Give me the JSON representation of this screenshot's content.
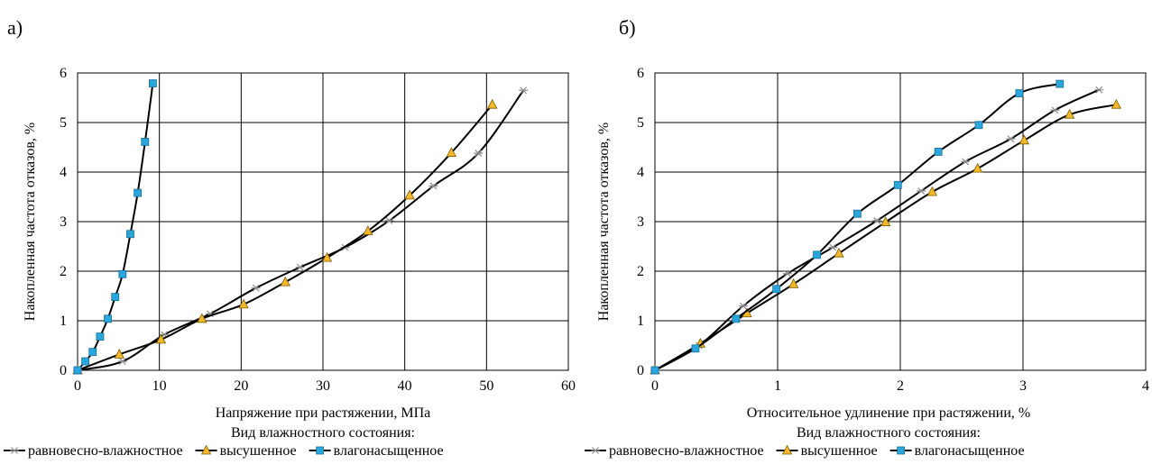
{
  "panels": [
    {
      "label": "а)"
    },
    {
      "label": "б)"
    }
  ],
  "legend_title": "Вид влажностного состояния:",
  "colors": {
    "marker_fill": "#29a6dc",
    "triangle_fill": "#f5b82a",
    "star_stroke": "#8c8c8c",
    "line": "#000000"
  },
  "chart_data": [
    {
      "type": "line",
      "xlabel": "Напряжение при растяжении, МПа",
      "ylabel": "Накопленная частота отказов, %",
      "xlim": [
        0,
        60
      ],
      "ylim": [
        0,
        6
      ],
      "xticks": [
        "0",
        "10",
        "20",
        "30",
        "40",
        "50",
        "60"
      ],
      "yticks": [
        "0",
        "1",
        "2",
        "3",
        "4",
        "5",
        "6"
      ],
      "grid": true,
      "legend": "bottom",
      "series": [
        {
          "name": "равновесно-влажностное",
          "marker": "star",
          "x": [
            0,
            5.5,
            10.6,
            16.2,
            21.8,
            27.2,
            32.7,
            38.1,
            43.5,
            49,
            54.5
          ],
          "y": [
            0,
            0.18,
            0.72,
            1.14,
            1.66,
            2.08,
            2.48,
            3.02,
            3.72,
            4.38,
            5.65
          ]
        },
        {
          "name": "высушенное",
          "marker": "triangle",
          "x": [
            0,
            5.1,
            10.2,
            15.2,
            20.3,
            25.4,
            30.5,
            35.5,
            40.6,
            45.7,
            50.7
          ],
          "y": [
            0,
            0.32,
            0.62,
            1.04,
            1.33,
            1.78,
            2.27,
            2.81,
            3.53,
            4.39,
            5.36
          ]
        },
        {
          "name": "влагонасыщенное",
          "marker": "square",
          "x": [
            0,
            0.95,
            1.85,
            2.75,
            3.7,
            4.6,
            5.5,
            6.45,
            7.35,
            8.25,
            9.2
          ],
          "y": [
            0,
            0.18,
            0.37,
            0.68,
            1.04,
            1.48,
            1.94,
            2.75,
            3.58,
            4.61,
            5.79
          ]
        }
      ]
    },
    {
      "type": "line",
      "xlabel": "Относительное удлинение при растяжении, %",
      "ylabel": "Накопленная частота отказов, %",
      "xlim": [
        0,
        4
      ],
      "ylim": [
        0,
        6
      ],
      "xticks": [
        "0",
        "1",
        "2",
        "3",
        "4"
      ],
      "yticks": [
        "0",
        "1",
        "2",
        "3",
        "4",
        "5",
        "6"
      ],
      "grid": true,
      "legend": "bottom",
      "series": [
        {
          "name": "равновесно-влажностное",
          "marker": "star",
          "x": [
            0,
            0.36,
            0.72,
            1.08,
            1.45,
            1.81,
            2.17,
            2.53,
            2.9,
            3.26,
            3.62
          ],
          "y": [
            0,
            0.5,
            1.3,
            1.95,
            2.48,
            3.02,
            3.62,
            4.21,
            4.67,
            5.25,
            5.66
          ]
        },
        {
          "name": "высушенное",
          "marker": "triangle",
          "x": [
            0,
            0.37,
            0.75,
            1.13,
            1.5,
            1.88,
            2.26,
            2.63,
            3.01,
            3.38,
            3.76
          ],
          "y": [
            0,
            0.54,
            1.15,
            1.74,
            2.36,
            2.99,
            3.6,
            4.07,
            4.64,
            5.16,
            5.36
          ]
        },
        {
          "name": "влагонасыщенное",
          "marker": "square",
          "x": [
            0,
            0.33,
            0.66,
            0.99,
            1.32,
            1.65,
            1.98,
            2.31,
            2.64,
            2.97,
            3.3
          ],
          "y": [
            0,
            0.44,
            1.04,
            1.64,
            2.33,
            3.16,
            3.74,
            4.41,
            4.95,
            5.59,
            5.78
          ]
        }
      ]
    }
  ]
}
